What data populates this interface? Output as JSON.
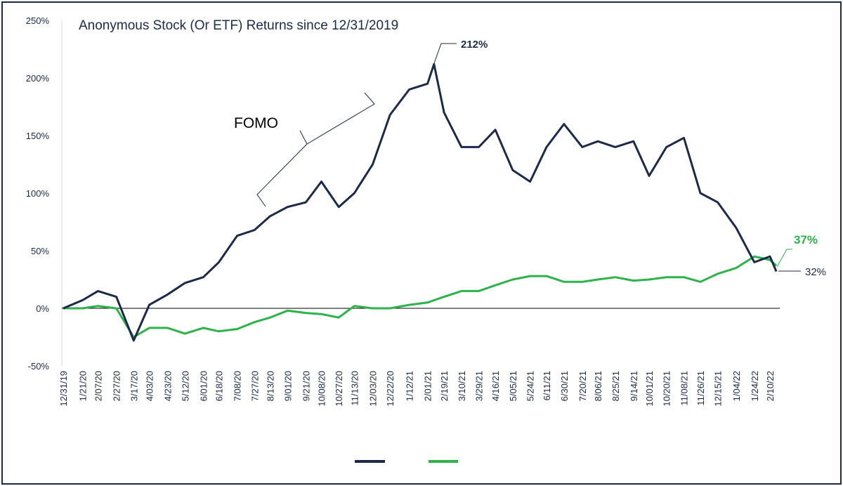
{
  "chart_data": {
    "type": "line",
    "title": "Anonymous Stock (Or ETF) Returns since 12/31/2019",
    "xlabel": "",
    "ylabel": "",
    "ylim": [
      -50,
      250
    ],
    "yticks": [
      "-50%",
      "0%",
      "50%",
      "100%",
      "150%",
      "200%",
      "250%"
    ],
    "ytick_values": [
      -50,
      0,
      50,
      100,
      150,
      200,
      250
    ],
    "xticks": [
      "12/31/19",
      "1/21/20",
      "2/07/20",
      "2/27/20",
      "3/17/20",
      "4/03/20",
      "4/23/20",
      "5/12/20",
      "6/01/20",
      "6/18/20",
      "7/08/20",
      "7/27/20",
      "8/13/20",
      "9/01/20",
      "9/21/20",
      "10/08/20",
      "10/27/20",
      "11/13/20",
      "12/03/20",
      "12/22/20",
      "1/12/21",
      "2/01/21",
      "2/19/21",
      "3/10/21",
      "3/29/21",
      "4/16/21",
      "5/05/21",
      "5/24/21",
      "6/11/21",
      "6/30/21",
      "7/20/21",
      "8/06/21",
      "8/25/21",
      "9/14/21",
      "10/01/21",
      "10/20/21",
      "11/08/21",
      "11/26/21",
      "12/15/21",
      "1/04/22",
      "1/24/22",
      "2/10/22"
    ],
    "grid": false,
    "legend": "bottom",
    "x": [
      "12/31/19",
      "1/21/20",
      "2/07/20",
      "2/27/20",
      "3/17/20",
      "4/03/20",
      "4/23/20",
      "5/12/20",
      "6/01/20",
      "6/18/20",
      "7/08/20",
      "7/27/20",
      "8/13/20",
      "9/01/20",
      "9/21/20",
      "10/08/20",
      "10/27/20",
      "11/13/20",
      "12/03/20",
      "12/22/20",
      "1/12/21",
      "2/01/21",
      "2/08/21",
      "2/19/21",
      "3/10/21",
      "3/29/21",
      "4/16/21",
      "5/05/21",
      "5/24/21",
      "6/11/21",
      "6/30/21",
      "7/20/21",
      "8/06/21",
      "8/25/21",
      "9/14/21",
      "10/01/21",
      "10/20/21",
      "11/08/21",
      "11/26/21",
      "12/15/21",
      "1/04/22",
      "1/24/22",
      "2/10/22",
      "2/17/22"
    ],
    "series": [
      {
        "color": "#1b2a4a",
        "values": [
          0,
          7,
          15,
          10,
          -28,
          3,
          12,
          22,
          27,
          40,
          63,
          68,
          80,
          88,
          92,
          110,
          88,
          100,
          125,
          168,
          190,
          195,
          212,
          170,
          140,
          140,
          155,
          120,
          110,
          140,
          160,
          140,
          145,
          140,
          145,
          115,
          140,
          148,
          100,
          92,
          70,
          40,
          45,
          32
        ]
      },
      {
        "color": "#2cb34a",
        "values": [
          0,
          0,
          2,
          0,
          -25,
          -17,
          -17,
          -22,
          -17,
          -20,
          -18,
          -12,
          -8,
          -2,
          -4,
          -5,
          -8,
          2,
          0,
          0,
          3,
          5,
          7,
          10,
          15,
          15,
          20,
          25,
          28,
          28,
          23,
          23,
          25,
          27,
          24,
          25,
          27,
          27,
          23,
          30,
          35,
          45,
          42,
          37
        ]
      }
    ],
    "annotations": {
      "peak": "212%",
      "green_end": "37%",
      "dark_end": "32%",
      "fomo": "FOMO"
    }
  }
}
